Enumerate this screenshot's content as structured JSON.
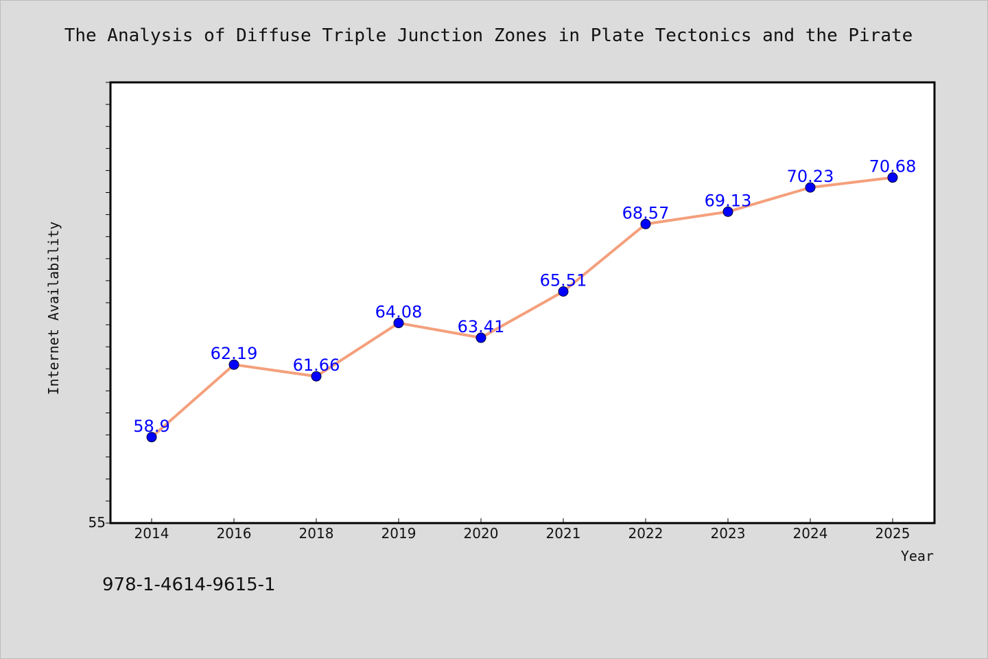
{
  "colors": {
    "background": "#dcdcdc",
    "plot_background": "#ffffff",
    "line": "#f4a07c",
    "marker": "#0000ff",
    "data_label": "#0000ff"
  },
  "footer": {
    "isbn": "978-1-4614-9615-1"
  },
  "chart_data": {
    "type": "line",
    "title": "The Analysis of Diffuse Triple Junction Zones in Plate Tectonics and the Pirate",
    "xlabel": "Year",
    "ylabel": "Internet Availability",
    "categories": [
      "2014",
      "2016",
      "2018",
      "2019",
      "2020",
      "2021",
      "2022",
      "2023",
      "2024",
      "2025"
    ],
    "series": [
      {
        "values": [
          58.9,
          62.19,
          61.66,
          64.08,
          63.41,
          65.51,
          68.57,
          69.13,
          70.23,
          70.68
        ],
        "labels": [
          "58.9",
          "62.19",
          "61.66",
          "64.08",
          "63.41",
          "65.51",
          "68.57",
          "69.13",
          "70.23",
          "70.68"
        ]
      }
    ],
    "ylim": [
      55,
      75
    ],
    "y_tick_labels": [
      "55"
    ],
    "grid": false,
    "legend": "none"
  }
}
